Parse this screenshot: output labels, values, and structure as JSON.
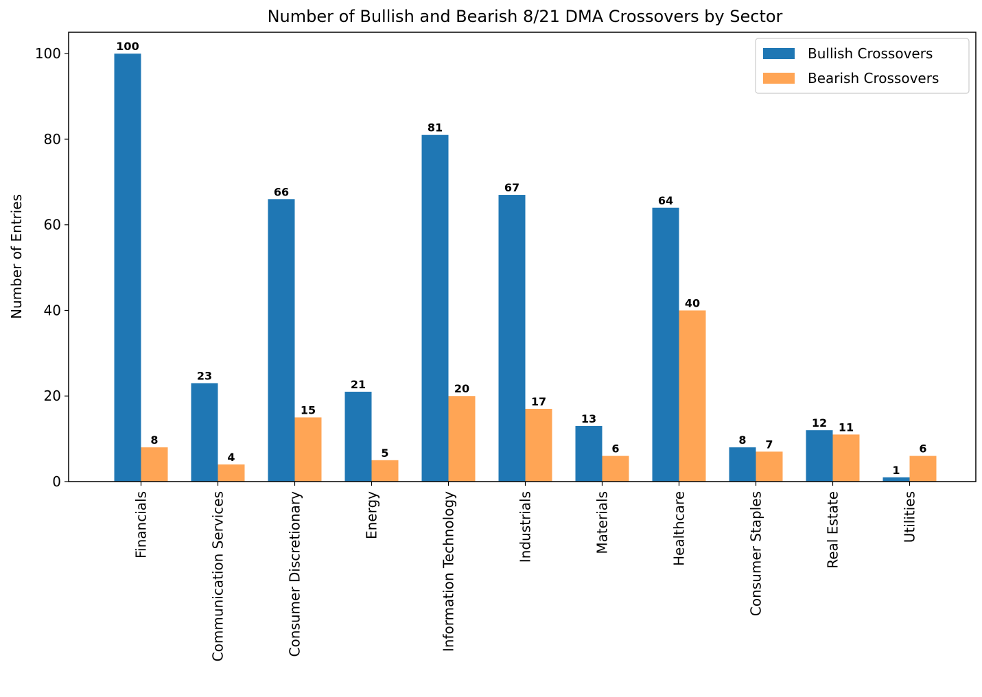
{
  "chart_data": {
    "type": "bar",
    "title": "Number of Bullish and Bearish 8/21 DMA Crossovers by Sector",
    "xlabel": "",
    "ylabel": "Number of Entries",
    "ylim": [
      0,
      105
    ],
    "yticks": [
      0,
      20,
      40,
      60,
      80,
      100
    ],
    "grid": false,
    "legend_position": "top-right",
    "categories": [
      "Financials",
      "Communication Services",
      "Consumer Discretionary",
      "Energy",
      "Information Technology",
      "Industrials",
      "Materials",
      "Healthcare",
      "Consumer Staples",
      "Real Estate",
      "Utilities"
    ],
    "series": [
      {
        "name": "Bullish Crossovers",
        "color": "#1f77b4",
        "values": [
          100,
          23,
          66,
          21,
          81,
          67,
          13,
          64,
          8,
          12,
          1
        ]
      },
      {
        "name": "Bearish Crossovers",
        "color": "#ffa555",
        "values": [
          8,
          4,
          15,
          5,
          20,
          17,
          6,
          40,
          7,
          11,
          6
        ]
      }
    ]
  }
}
